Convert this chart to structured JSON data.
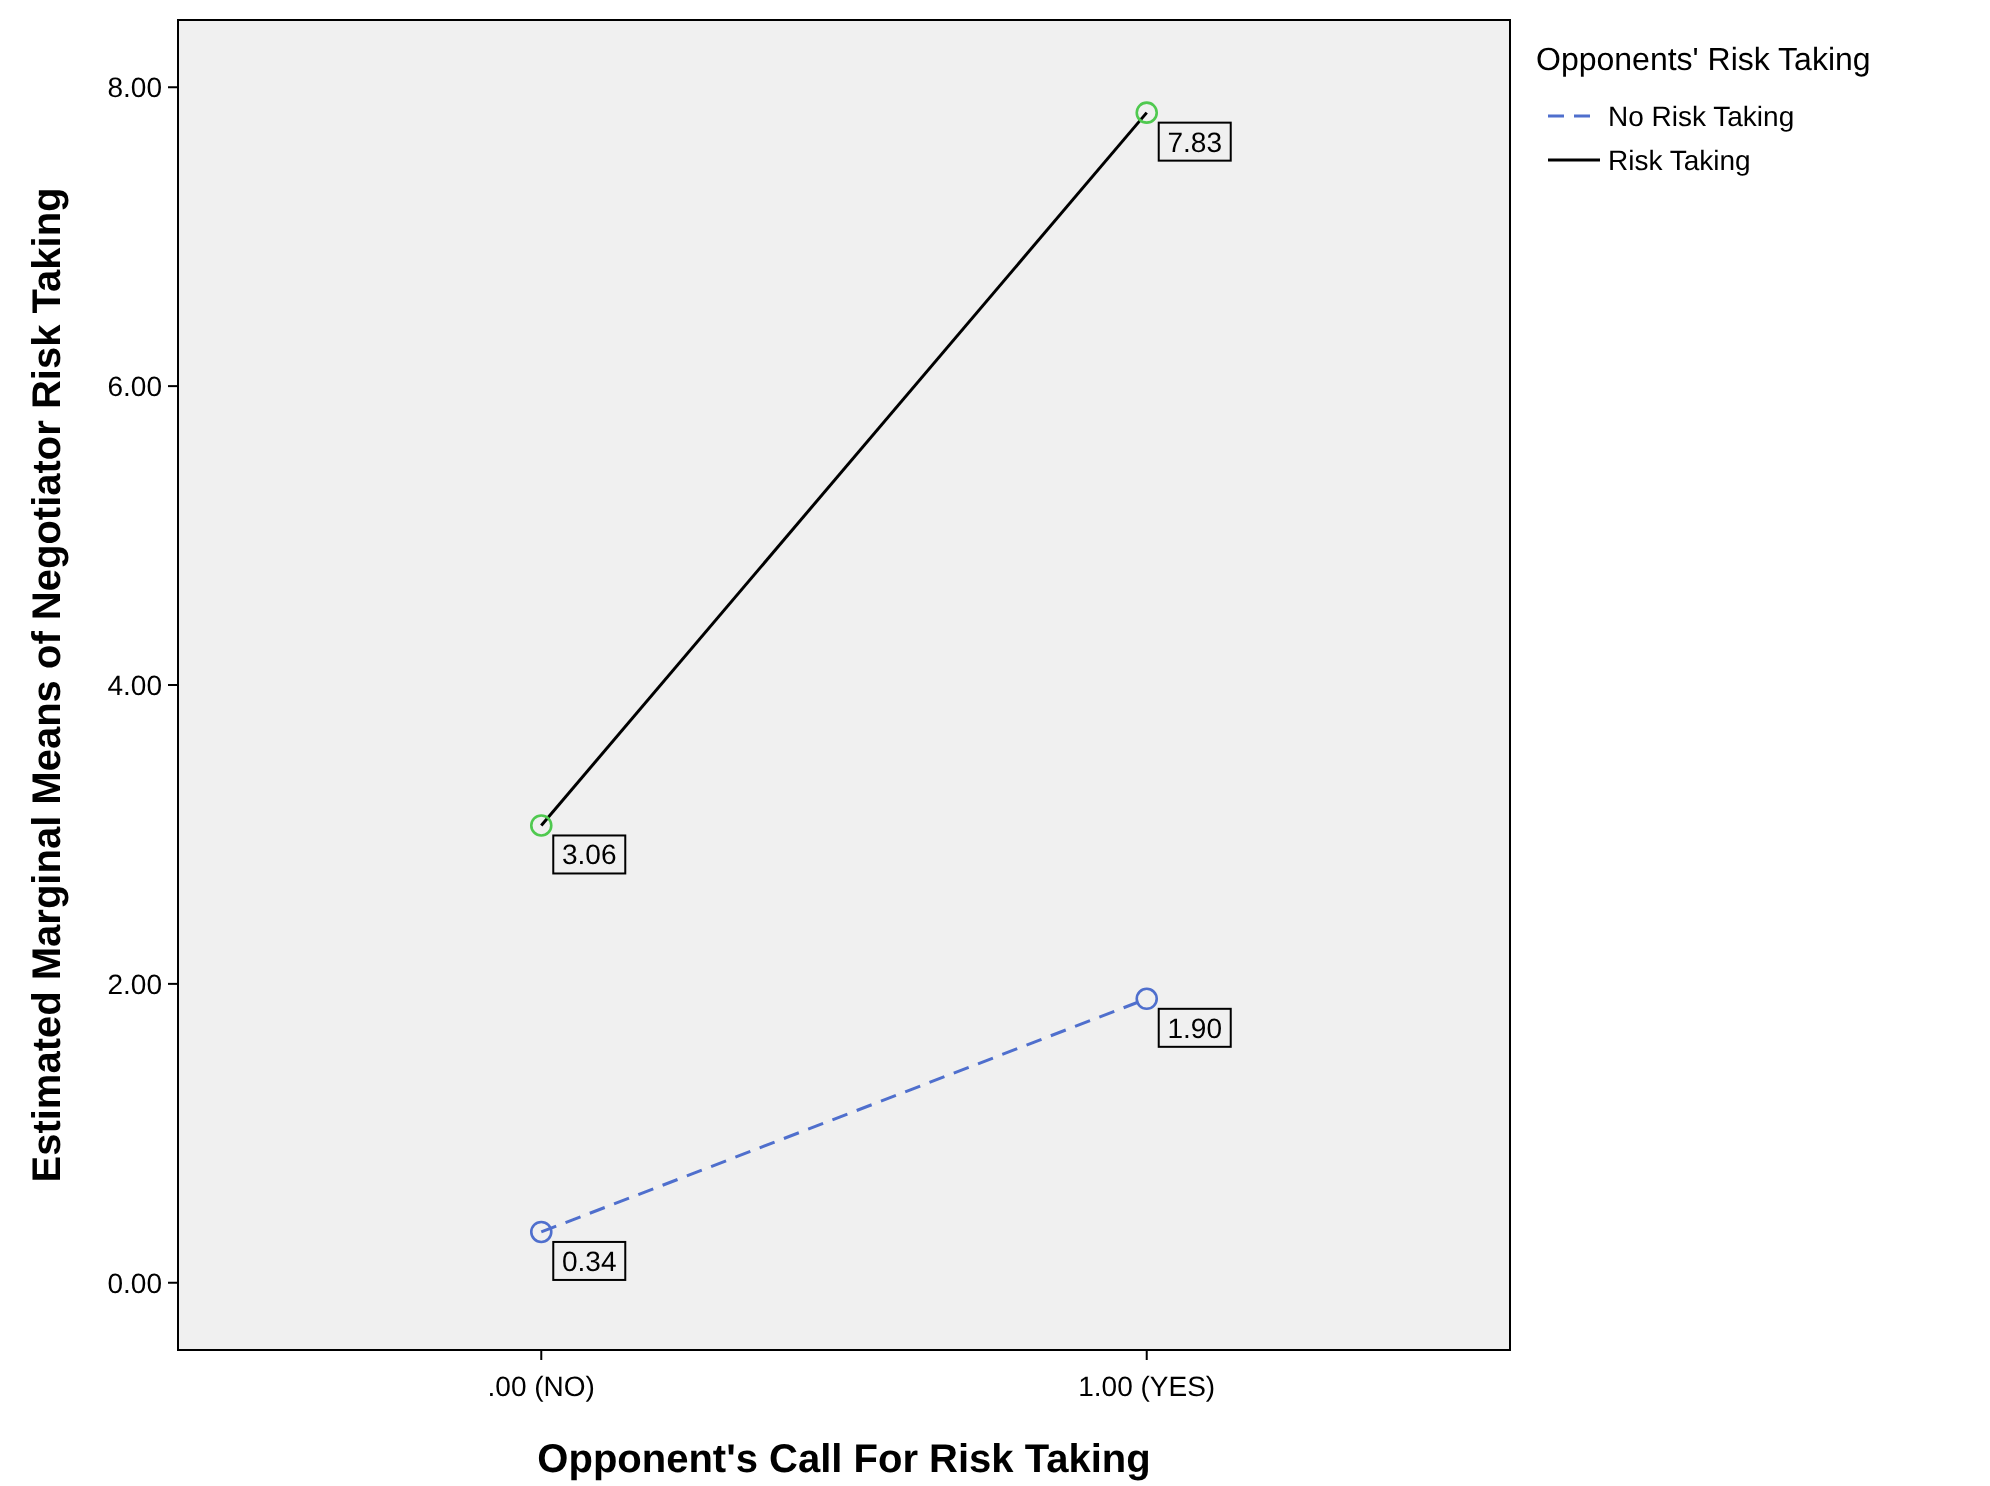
{
  "chart_data": {
    "type": "line",
    "xlabel": "Opponent's Call For Risk Taking",
    "ylabel": "Estimated Marginal Means of Negotiator Risk Taking",
    "legend_title": "Opponents' Risk Taking",
    "categories": [
      ".00 (NO)",
      "1.00 (YES)"
    ],
    "series": [
      {
        "name": "No Risk Taking",
        "color": "#4f6fcd",
        "line_style": "dashed",
        "values": [
          0.34,
          1.9
        ],
        "value_labels": [
          "0.34",
          "1.90"
        ]
      },
      {
        "name": "Risk Taking",
        "color": "#000000",
        "colors": [
          "#4fc94f",
          "#4fc94f"
        ],
        "line_style": "solid",
        "values": [
          3.06,
          7.83
        ],
        "value_labels": [
          "3.06",
          "7.83"
        ]
      }
    ],
    "ylim": [
      -0.45,
      8.45
    ],
    "yticks": [
      {
        "value": 0,
        "label": "0.00"
      },
      {
        "value": 2,
        "label": "2.00"
      },
      {
        "value": 4,
        "label": "4.00"
      },
      {
        "value": 6,
        "label": "6.00"
      },
      {
        "value": 8,
        "label": "8.00"
      }
    ],
    "marker": "circle",
    "legend": "top right",
    "grid": false
  }
}
